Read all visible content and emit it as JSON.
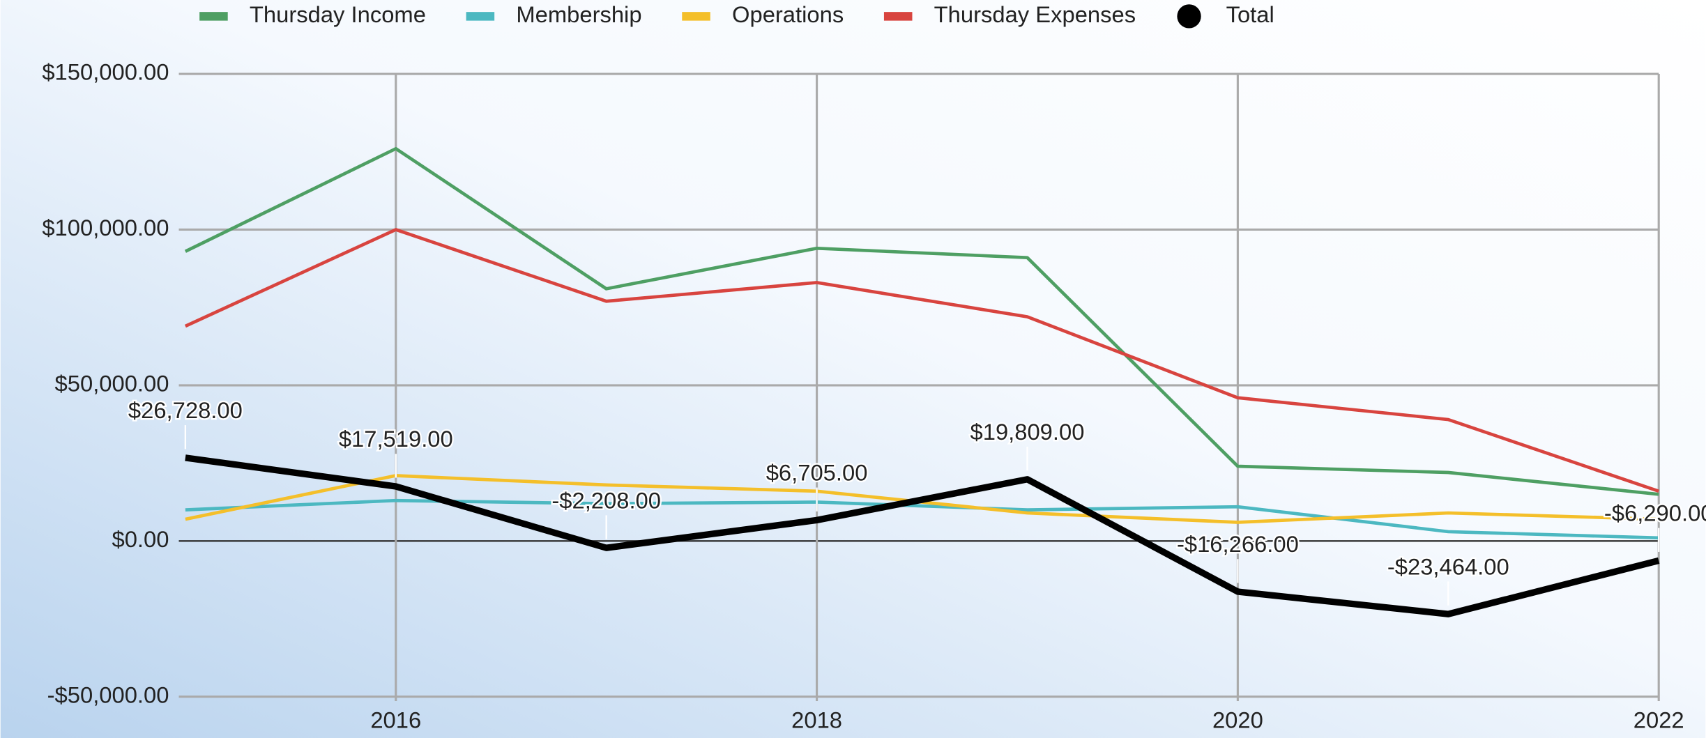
{
  "chart_data": {
    "type": "line",
    "x": [
      2015,
      2016,
      2017,
      2018,
      2019,
      2020,
      2021,
      2022
    ],
    "xlim": [
      2015,
      2022
    ],
    "xticks": [
      2016,
      2018,
      2020,
      2022
    ],
    "ylim": [
      -50000,
      150000
    ],
    "yticks": [
      {
        "value": -50000,
        "label": "-$50,000.00"
      },
      {
        "value": 0,
        "label": "$0.00"
      },
      {
        "value": 50000,
        "label": "$50,000.00"
      },
      {
        "value": 100000,
        "label": "$100,000.00"
      },
      {
        "value": 150000,
        "label": "$150,000.00"
      }
    ],
    "grid": true,
    "legend": "top",
    "series": [
      {
        "name": "Thursday Income",
        "color": "#4e9f63",
        "line_width": 3,
        "values": [
          93000,
          126000,
          81000,
          94000,
          91000,
          24000,
          22000,
          15000
        ]
      },
      {
        "name": "Membership",
        "color": "#4cb8c1",
        "line_width": 3,
        "values": [
          10000,
          13000,
          12000,
          12500,
          10000,
          11000,
          3000,
          1000
        ]
      },
      {
        "name": "Operations",
        "color": "#f4bf2a",
        "line_width": 3,
        "values": [
          7000,
          21000,
          18000,
          16000,
          9000,
          6000,
          9000,
          7000
        ]
      },
      {
        "name": "Thursday Expenses",
        "color": "#d8443f",
        "line_width": 3,
        "values": [
          69000,
          100000,
          77000,
          83000,
          72000,
          46000,
          39000,
          16000
        ]
      },
      {
        "name": "Total",
        "color": "#000000",
        "line_width": 6,
        "values": [
          26728,
          17519,
          -2208,
          6705,
          19809,
          -16266,
          -23464,
          -6290
        ],
        "value_labels": [
          "$26,728.00",
          "$17,519.00",
          "-$2,208.00",
          "$6,705.00",
          "$19,809.00",
          "-$16,266.00",
          "-$23,464.00",
          "-$6,290.00"
        ]
      }
    ]
  }
}
